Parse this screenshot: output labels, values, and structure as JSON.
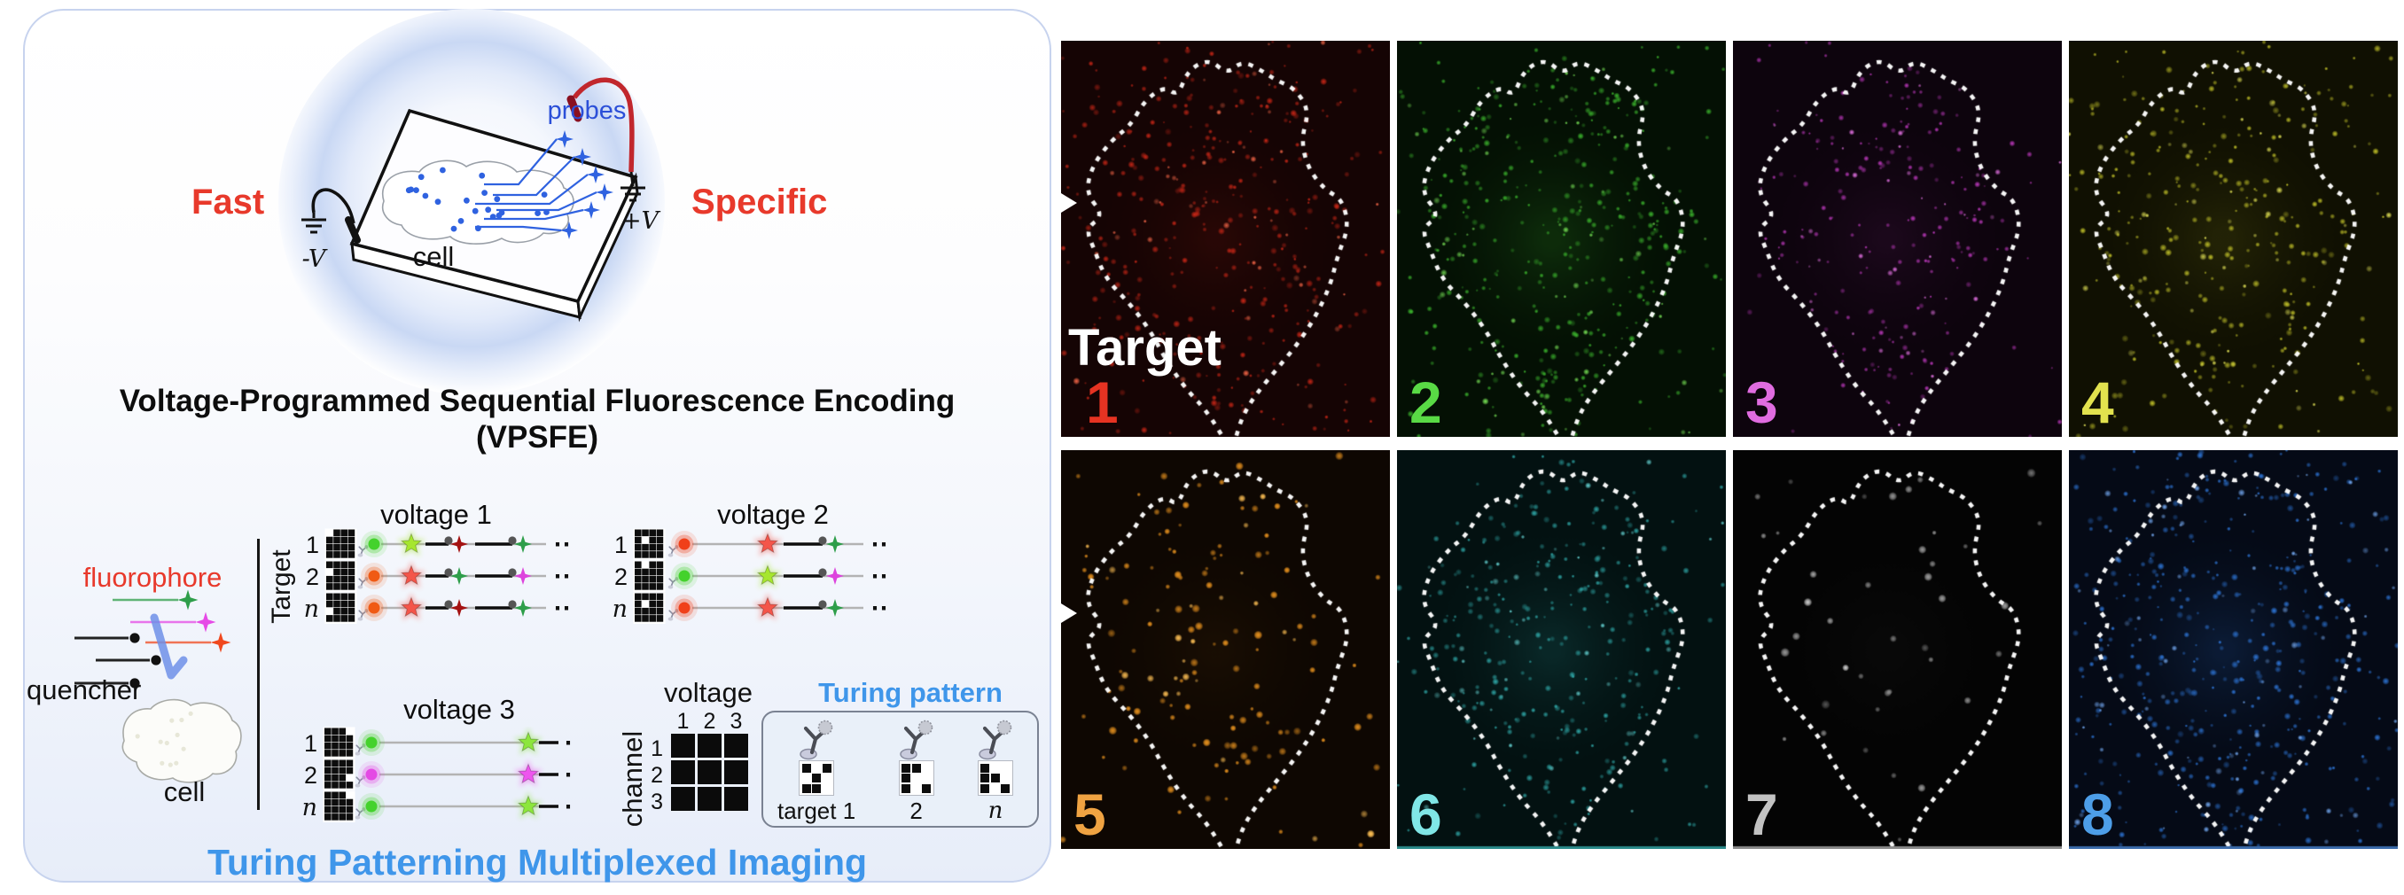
{
  "panel_left": {
    "fast_label": "Fast",
    "specific_label": "Specific",
    "accent_red": "#e8392b",
    "accent_blue": "#2b4fd8",
    "schematic": {
      "probes_label": "probes",
      "cell_label": "cell",
      "neg_electrode_label": "-V",
      "pos_electrode_label": "+V"
    },
    "title_line1": "Voltage-Programmed Sequential Fluorescence Encoding",
    "title_line2": "(VPSFE)",
    "legend": {
      "fluorophore_label": "fluorophore",
      "quencher_label": "quencher",
      "cell_label": "cell",
      "fluorophore_colors": [
        "#2e9e4a",
        "#e64ae6",
        "#f0481e"
      ],
      "quencher_color": "#111111",
      "arrow_color": "#6f8fe8"
    },
    "target_axis_label": "Target",
    "ellipsis": "⋯",
    "voltage_blocks": [
      {
        "title": "voltage 1",
        "type": "short",
        "rows": [
          {
            "label": "1",
            "barcode": [
              0,
              1,
              1,
              1,
              1,
              1,
              1,
              1,
              1,
              1,
              1,
              1,
              1,
              1,
              1,
              1
            ],
            "dot": "#44d22c",
            "star": "#a6e62e",
            "tail": [
              "#a41212",
              "#2e9e4a"
            ]
          },
          {
            "label": "2",
            "barcode": [
              1,
              1,
              1,
              1,
              0,
              1,
              1,
              1,
              1,
              1,
              1,
              1,
              1,
              1,
              1,
              1
            ],
            "dot": "#f05a14",
            "star": "#f4554a",
            "tail": [
              "#2e9e4a",
              "#dd44dd"
            ]
          },
          {
            "label": "n",
            "barcode": [
              1,
              1,
              1,
              1,
              1,
              1,
              1,
              1,
              0,
              1,
              1,
              1,
              1,
              1,
              1,
              1
            ],
            "dot": "#f05a14",
            "star": "#f4554a",
            "tail": [
              "#a41212",
              "#2e9e4a"
            ]
          }
        ]
      },
      {
        "title": "voltage 2",
        "type": "mid",
        "rows": [
          {
            "label": "1",
            "barcode": [
              1,
              1,
              1,
              1,
              1,
              0,
              1,
              1,
              1,
              1,
              1,
              1,
              1,
              1,
              1,
              1
            ],
            "dot": "#f0401a",
            "star": "#f4554a",
            "tail": [
              "#2e9e4a"
            ]
          },
          {
            "label": "2",
            "barcode": [
              1,
              0,
              1,
              1,
              1,
              1,
              1,
              1,
              1,
              1,
              1,
              1,
              1,
              1,
              1,
              1
            ],
            "dot": "#44d22c",
            "star": "#a6e62e",
            "tail": [
              "#dd44dd"
            ]
          },
          {
            "label": "n",
            "barcode": [
              1,
              1,
              1,
              1,
              1,
              0,
              1,
              1,
              1,
              1,
              1,
              1,
              1,
              1,
              1,
              1
            ],
            "dot": "#f0401a",
            "star": "#f4554a",
            "tail": [
              "#2e9e4a"
            ]
          }
        ]
      },
      {
        "title": "voltage 3",
        "type": "long",
        "rows": [
          {
            "label": "1",
            "barcode": [
              1,
              1,
              1,
              0,
              1,
              1,
              1,
              1,
              1,
              1,
              1,
              1,
              1,
              1,
              1,
              1
            ],
            "dot": "#44d22c",
            "star": "#8ce63c",
            "tail": []
          },
          {
            "label": "2",
            "barcode": [
              1,
              1,
              1,
              1,
              1,
              1,
              1,
              1,
              1,
              1,
              1,
              0,
              1,
              1,
              1,
              1
            ],
            "dot": "#e44ae4",
            "star": "#ee55ee",
            "tail": []
          },
          {
            "label": "n",
            "barcode": [
              1,
              1,
              1,
              0,
              1,
              1,
              1,
              1,
              1,
              1,
              1,
              1,
              1,
              1,
              1,
              1
            ],
            "dot": "#44d22c",
            "star": "#8ce63c",
            "tail": []
          }
        ]
      }
    ],
    "matrix": {
      "col_axis_label": "voltage",
      "row_axis_label": "channel",
      "col_labels": [
        "1",
        "2",
        "3"
      ],
      "row_labels": [
        "1",
        "2",
        "3"
      ],
      "cells_filled": [
        1,
        1,
        1,
        1,
        1,
        1,
        1,
        1,
        1
      ]
    },
    "turing_pattern": {
      "title": "Turing pattern",
      "title_color": "#3f96ea",
      "items": [
        {
          "label": "target 1",
          "grid": [
            1,
            0,
            1,
            0,
            1,
            0,
            1,
            1,
            0
          ]
        },
        {
          "label": "2",
          "grid": [
            1,
            1,
            0,
            1,
            0,
            0,
            1,
            0,
            1
          ]
        },
        {
          "label": "n",
          "grid": [
            1,
            0,
            0,
            1,
            1,
            0,
            1,
            0,
            1
          ]
        }
      ]
    },
    "footer": "Turing Patterning Multiplexed Imaging",
    "footer_color": "#3f96ea"
  },
  "panel_right": {
    "target_label": "Target",
    "tiles": [
      {
        "number": "1",
        "number_color": "#e63322",
        "bg": "#150404",
        "dot_color": "#cf2717",
        "dot_bright": "#ff6a4a",
        "count": 380,
        "rmin": 1.6,
        "rmax": 4.2,
        "spread": 0.38,
        "haze": 0.1,
        "blur": 0,
        "seed": 11,
        "arrow": true,
        "target_label": true,
        "num_left": 28
      },
      {
        "number": "2",
        "number_color": "#59da45",
        "bg": "#041004",
        "dot_color": "#3dbb2e",
        "dot_bright": "#7dee5a",
        "count": 430,
        "rmin": 1.6,
        "rmax": 4.0,
        "spread": 0.25,
        "haze": 0.16,
        "blur": 0,
        "seed": 22,
        "num_left": 14
      },
      {
        "number": "3",
        "number_color": "#e06ce0",
        "bg": "#0d040d",
        "dot_color": "#c23ac2",
        "dot_bright": "#ee77ee",
        "count": 240,
        "rmin": 1.5,
        "rmax": 3.6,
        "spread": 0.12,
        "haze": 0.08,
        "blur": 0,
        "seed": 33,
        "num_left": 14
      },
      {
        "number": "4",
        "number_color": "#e2e24e",
        "bg": "#101002",
        "dot_color": "#c9c92a",
        "dot_bright": "#f2f25c",
        "count": 340,
        "rmin": 1.6,
        "rmax": 4.2,
        "spread": 0.3,
        "haze": 0.1,
        "blur": 0,
        "seed": 44,
        "num_left": 14
      },
      {
        "number": "5",
        "number_color": "#f0a342",
        "bg": "#0e0702",
        "dot_color": "#e08d1d",
        "dot_bright": "#ffc054",
        "count": 140,
        "rmin": 2.2,
        "rmax": 5.0,
        "spread": 0.22,
        "haze": 0.05,
        "blur": 3,
        "seed": 55,
        "arrow": true,
        "num_left": 14
      },
      {
        "number": "6",
        "number_color": "#80e6e6",
        "bg": "#031111",
        "dot_color": "#31b0b0",
        "dot_bright": "#6adede",
        "count": 320,
        "rmin": 1.8,
        "rmax": 4.0,
        "spread": 0.15,
        "haze": 0.14,
        "blur": 0,
        "seed": 66,
        "edge": "#2a8a8a",
        "num_left": 14
      },
      {
        "number": "7",
        "number_color": "#c2c2c2",
        "bg": "#040404",
        "dot_color": "#9a9a9a",
        "dot_bright": "#d8d8d8",
        "count": 40,
        "rmin": 2.5,
        "rmax": 5.5,
        "spread": 0.3,
        "haze": 0.03,
        "blur": 6,
        "seed": 77,
        "edge": "#8a8a8a",
        "num_left": 14
      },
      {
        "number": "8",
        "number_color": "#4d9ee8",
        "bg": "#050a16",
        "dot_color": "#2f7ae0",
        "dot_bright": "#7ab2ff",
        "count": 470,
        "rmin": 1.6,
        "rmax": 4.2,
        "spread": 0.4,
        "haze": 0.15,
        "blur": 0,
        "seed": 88,
        "edge": "#3a6aaa",
        "num_left": 14
      }
    ]
  }
}
